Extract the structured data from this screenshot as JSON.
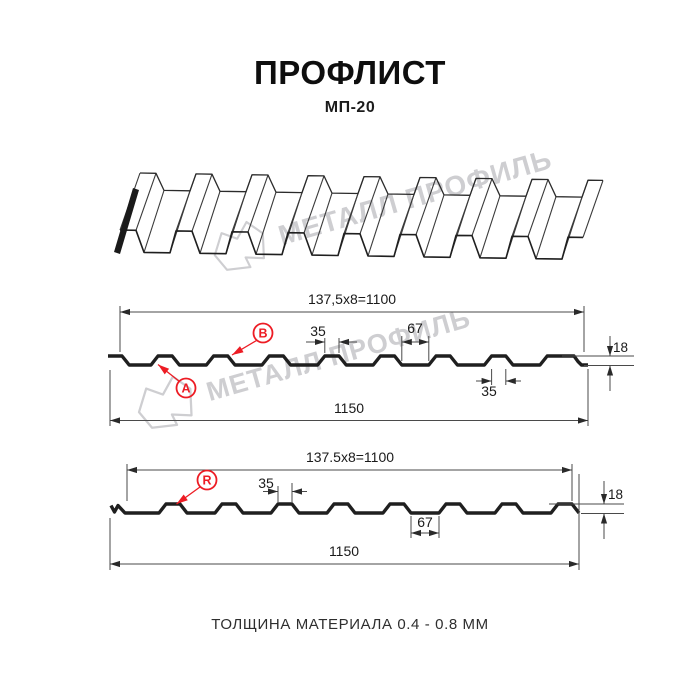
{
  "header": {
    "title": "ПРОФЛИСТ",
    "subtitle": "МП-20"
  },
  "footer": {
    "text": "ТОЛЩИНА МАТЕРИАЛА 0.4 - 0.8 ММ"
  },
  "watermark": {
    "brand": "МЕТАЛЛ ПРОФИЛЬ"
  },
  "colors": {
    "line": "#1f1f1f",
    "dim_line": "#4a4a4a",
    "red": "#ed1c24",
    "watermark": "#c6c6ca"
  },
  "profile_front": {
    "dim_module": "137,5x8=1100",
    "dim_crest_width": "35",
    "dim_valley_width": "67",
    "dim_height": "18",
    "dim_crest_width_bottom": "35",
    "dim_overall": "1150",
    "label_a": "A",
    "label_b": "B"
  },
  "profile_reverse": {
    "dim_module": "137.5x8=1100",
    "dim_crest_width": "35",
    "dim_valley_width": "67",
    "dim_height": "18",
    "dim_overall": "1150",
    "label_r": "R"
  }
}
